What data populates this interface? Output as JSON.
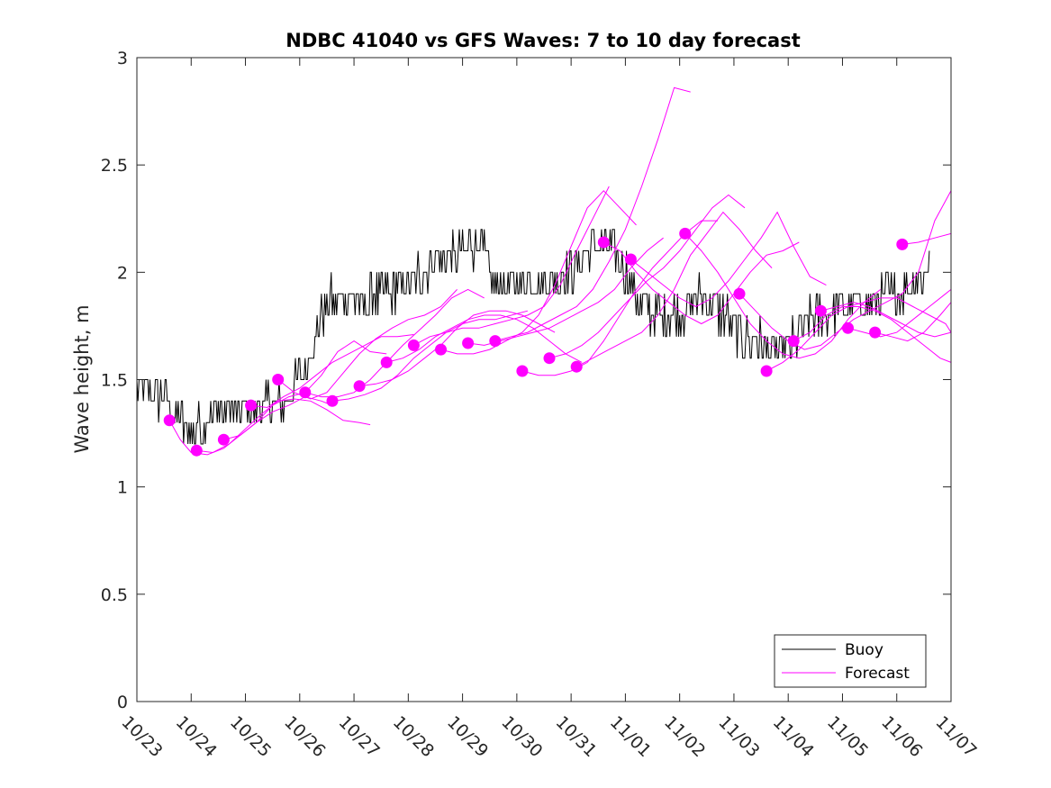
{
  "chart_data": {
    "type": "line",
    "title": "NDBC 41040 vs GFS Waves: 7 to 10 day forecast",
    "xlabel": "",
    "ylabel": "Wave height, m",
    "x_tick_labels": [
      "10/23",
      "10/24",
      "10/25",
      "10/26",
      "10/27",
      "10/28",
      "10/29",
      "10/30",
      "10/31",
      "11/01",
      "11/02",
      "11/03",
      "11/04",
      "11/05",
      "11/06",
      "11/07"
    ],
    "y_tick_labels": [
      "0",
      "0.5",
      "1",
      "1.5",
      "2",
      "2.5",
      "3"
    ],
    "xlim": [
      0,
      15
    ],
    "ylim": [
      0,
      3
    ],
    "y_ticks": [
      0,
      0.5,
      1,
      1.5,
      2,
      2.5,
      3
    ],
    "x_units": "days since 10/23",
    "legend": {
      "location": "bottom-right",
      "entries": [
        "Buoy",
        "Forecast"
      ]
    },
    "colors": {
      "buoy": "#000000",
      "forecast": "#ff00ff",
      "axes": "#262626"
    },
    "buoy_series": {
      "name": "Buoy",
      "anchors": [
        [
          0,
          1.45
        ],
        [
          0.5,
          1.4
        ],
        [
          0.8,
          1.3
        ],
        [
          1.0,
          1.25
        ],
        [
          1.5,
          1.35
        ],
        [
          2.0,
          1.35
        ],
        [
          2.5,
          1.4
        ],
        [
          2.8,
          1.4
        ],
        [
          3.0,
          1.5
        ],
        [
          3.3,
          1.7
        ],
        [
          3.5,
          1.85
        ],
        [
          3.8,
          1.9
        ],
        [
          4.2,
          1.85
        ],
        [
          4.5,
          1.9
        ],
        [
          5.0,
          1.95
        ],
        [
          5.5,
          2.05
        ],
        [
          6.0,
          2.1
        ],
        [
          6.3,
          2.15
        ],
        [
          6.6,
          1.95
        ],
        [
          7.0,
          1.95
        ],
        [
          7.5,
          1.95
        ],
        [
          8.0,
          2.0
        ],
        [
          8.3,
          2.1
        ],
        [
          8.6,
          2.15
        ],
        [
          9.0,
          2.0
        ],
        [
          9.3,
          1.85
        ],
        [
          9.6,
          1.8
        ],
        [
          10.0,
          1.8
        ],
        [
          10.4,
          1.9
        ],
        [
          10.8,
          1.8
        ],
        [
          11.2,
          1.7
        ],
        [
          11.6,
          1.65
        ],
        [
          12.0,
          1.65
        ],
        [
          12.3,
          1.75
        ],
        [
          12.6,
          1.8
        ],
        [
          13.0,
          1.85
        ],
        [
          13.5,
          1.85
        ],
        [
          14.0,
          1.9
        ],
        [
          14.3,
          1.95
        ],
        [
          14.5,
          2.0
        ],
        [
          14.6,
          2.1
        ]
      ],
      "noise_amplitude": 0.1,
      "step": 0.02,
      "quantum": 0.1
    },
    "forecast_runs": [
      {
        "x": [
          0.6,
          0.8,
          1.0,
          1.3,
          1.6,
          1.9,
          2.2,
          2.5,
          2.8,
          3.1,
          3.4,
          3.6
        ],
        "y": [
          1.31,
          1.22,
          1.16,
          1.15,
          1.18,
          1.24,
          1.3,
          1.35,
          1.38,
          1.42,
          1.4,
          1.38
        ]
      },
      {
        "x": [
          1.1,
          1.4,
          1.7,
          2.0,
          2.3,
          2.6,
          2.9,
          3.2,
          3.5,
          3.8,
          4.1,
          4.3
        ],
        "y": [
          1.17,
          1.16,
          1.2,
          1.27,
          1.34,
          1.4,
          1.41,
          1.4,
          1.36,
          1.31,
          1.3,
          1.29
        ]
      },
      {
        "x": [
          1.6,
          1.9,
          2.2,
          2.5,
          2.8,
          3.1,
          3.4,
          3.7,
          4.0,
          4.3,
          4.6
        ],
        "y": [
          1.22,
          1.24,
          1.3,
          1.38,
          1.42,
          1.44,
          1.52,
          1.63,
          1.68,
          1.63,
          1.62
        ]
      },
      {
        "x": [
          2.1,
          2.4,
          2.7,
          3.0,
          3.3,
          3.6,
          3.9,
          4.2,
          4.5,
          4.8,
          5.1
        ],
        "y": [
          1.38,
          1.37,
          1.42,
          1.46,
          1.52,
          1.58,
          1.62,
          1.66,
          1.7,
          1.7,
          1.71
        ]
      },
      {
        "x": [
          2.6,
          2.9,
          3.2,
          3.5,
          3.8,
          4.1,
          4.4,
          4.7,
          5.0,
          5.3,
          5.6,
          5.9
        ],
        "y": [
          1.5,
          1.44,
          1.41,
          1.44,
          1.53,
          1.62,
          1.69,
          1.74,
          1.78,
          1.8,
          1.84,
          1.92
        ]
      },
      {
        "x": [
          3.1,
          3.4,
          3.7,
          4.0,
          4.3,
          4.6,
          4.9,
          5.2,
          5.5,
          5.8,
          6.1,
          6.4
        ],
        "y": [
          1.44,
          1.42,
          1.42,
          1.44,
          1.5,
          1.58,
          1.66,
          1.73,
          1.8,
          1.88,
          1.92,
          1.88
        ]
      },
      {
        "x": [
          3.6,
          3.9,
          4.2,
          4.5,
          4.8,
          5.1,
          5.4,
          5.7,
          6.0,
          6.3,
          6.6,
          6.9,
          7.2
        ],
        "y": [
          1.4,
          1.41,
          1.43,
          1.46,
          1.52,
          1.6,
          1.66,
          1.72,
          1.76,
          1.78,
          1.78,
          1.8,
          1.82
        ]
      },
      {
        "x": [
          4.1,
          4.4,
          4.7,
          5.0,
          5.3,
          5.6,
          5.9,
          6.2,
          6.5,
          6.8,
          7.1,
          7.4,
          7.7
        ],
        "y": [
          1.47,
          1.48,
          1.5,
          1.54,
          1.6,
          1.66,
          1.74,
          1.8,
          1.82,
          1.82,
          1.8,
          1.76,
          1.72
        ]
      },
      {
        "x": [
          4.6,
          4.9,
          5.2,
          5.5,
          5.8,
          6.1,
          6.4,
          6.7,
          7.0,
          7.3,
          7.6,
          7.9,
          8.2
        ],
        "y": [
          1.58,
          1.6,
          1.64,
          1.7,
          1.74,
          1.78,
          1.8,
          1.8,
          1.78,
          1.74,
          1.68,
          1.62,
          1.58
        ]
      },
      {
        "x": [
          5.1,
          5.4,
          5.7,
          6.0,
          6.3,
          6.6,
          6.9,
          7.2,
          7.5,
          7.8,
          8.1,
          8.4,
          8.7
        ],
        "y": [
          1.66,
          1.7,
          1.72,
          1.74,
          1.74,
          1.76,
          1.78,
          1.8,
          1.84,
          1.94,
          2.1,
          2.25,
          2.4
        ]
      },
      {
        "x": [
          5.6,
          5.9,
          6.2,
          6.5,
          6.8,
          7.1,
          7.4,
          7.7,
          8.0,
          8.3,
          8.6,
          8.9,
          9.2
        ],
        "y": [
          1.64,
          1.62,
          1.62,
          1.64,
          1.68,
          1.72,
          1.8,
          1.94,
          2.12,
          2.3,
          2.38,
          2.3,
          2.22
        ]
      },
      {
        "x": [
          6.1,
          6.4,
          6.7,
          7.0,
          7.3,
          7.6,
          7.9,
          8.2,
          8.5,
          8.8,
          9.1,
          9.4,
          9.7
        ],
        "y": [
          1.67,
          1.66,
          1.68,
          1.7,
          1.72,
          1.74,
          1.78,
          1.82,
          1.86,
          1.92,
          2.02,
          2.1,
          2.16
        ]
      },
      {
        "x": [
          6.6,
          6.9,
          7.2,
          7.5,
          7.8,
          8.1,
          8.4,
          8.7,
          9.0,
          9.3,
          9.6,
          9.9,
          10.2
        ],
        "y": [
          1.68,
          1.7,
          1.72,
          1.76,
          1.8,
          1.84,
          1.92,
          2.05,
          2.2,
          2.4,
          2.62,
          2.86,
          2.84
        ]
      },
      {
        "x": [
          7.1,
          7.4,
          7.7,
          8.0,
          8.3,
          8.6,
          8.9,
          9.2,
          9.5,
          9.8,
          10.1,
          10.4,
          10.7
        ],
        "y": [
          1.54,
          1.52,
          1.52,
          1.54,
          1.58,
          1.68,
          1.8,
          1.92,
          2.02,
          2.1,
          2.18,
          2.24,
          2.24
        ]
      },
      {
        "x": [
          7.6,
          7.9,
          8.2,
          8.5,
          8.8,
          9.1,
          9.4,
          9.7,
          10.0,
          10.3,
          10.6,
          10.9,
          11.2
        ],
        "y": [
          1.6,
          1.62,
          1.66,
          1.72,
          1.8,
          1.88,
          1.96,
          2.02,
          2.1,
          2.2,
          2.3,
          2.36,
          2.3
        ]
      },
      {
        "x": [
          8.1,
          8.4,
          8.7,
          9.0,
          9.3,
          9.6,
          9.9,
          10.2,
          10.5,
          10.8,
          11.1,
          11.4,
          11.7
        ],
        "y": [
          1.56,
          1.6,
          1.64,
          1.68,
          1.72,
          1.8,
          1.92,
          2.08,
          2.18,
          2.28,
          2.2,
          2.1,
          2.02
        ]
      },
      {
        "x": [
          8.6,
          8.9,
          9.2,
          9.5,
          9.8,
          10.1,
          10.4,
          10.7,
          11.0,
          11.3,
          11.6,
          11.9,
          12.2
        ],
        "y": [
          2.14,
          2.1,
          2.0,
          1.92,
          1.86,
          1.8,
          1.76,
          1.8,
          1.9,
          2.0,
          2.08,
          2.1,
          2.14
        ]
      },
      {
        "x": [
          9.1,
          9.4,
          9.7,
          10.0,
          10.3,
          10.6,
          10.9,
          11.2,
          11.5,
          11.8,
          12.1,
          12.4,
          12.7
        ],
        "y": [
          2.06,
          2.0,
          1.94,
          1.88,
          1.84,
          1.88,
          1.96,
          2.06,
          2.16,
          2.28,
          2.12,
          1.98,
          1.94
        ]
      },
      {
        "x": [
          10.1,
          10.4,
          10.7,
          11.0,
          11.3,
          11.6,
          11.9,
          12.2,
          12.5,
          12.8,
          13.1,
          13.4,
          13.7
        ],
        "y": [
          2.18,
          2.1,
          2.0,
          1.88,
          1.76,
          1.68,
          1.62,
          1.6,
          1.62,
          1.68,
          1.78,
          1.86,
          1.92
        ]
      },
      {
        "x": [
          11.1,
          11.4,
          11.7,
          12.0,
          12.3,
          12.6,
          12.9,
          13.2,
          13.5,
          13.8,
          14.1,
          14.4,
          14.7,
          15.0
        ],
        "y": [
          1.9,
          1.82,
          1.74,
          1.68,
          1.64,
          1.66,
          1.72,
          1.78,
          1.82,
          1.86,
          1.9,
          2.0,
          2.24,
          2.38
        ]
      },
      {
        "x": [
          11.6,
          11.9,
          12.2,
          12.5,
          12.8,
          13.1,
          13.4,
          13.7,
          14.0,
          14.3,
          14.6,
          14.9,
          15.0
        ],
        "y": [
          1.54,
          1.58,
          1.64,
          1.72,
          1.8,
          1.84,
          1.86,
          1.88,
          1.88,
          1.84,
          1.8,
          1.76,
          1.72
        ]
      },
      {
        "x": [
          12.1,
          12.4,
          12.7,
          13.0,
          13.3,
          13.6,
          13.9,
          14.2,
          14.5,
          14.8,
          15.0
        ],
        "y": [
          1.68,
          1.72,
          1.8,
          1.84,
          1.84,
          1.82,
          1.78,
          1.72,
          1.66,
          1.6,
          1.58
        ]
      },
      {
        "x": [
          12.6,
          12.9,
          13.2,
          13.5,
          13.8,
          14.1,
          14.4,
          14.7,
          15.0
        ],
        "y": [
          1.82,
          1.84,
          1.86,
          1.84,
          1.8,
          1.76,
          1.72,
          1.7,
          1.72
        ]
      },
      {
        "x": [
          13.1,
          13.4,
          13.7,
          14.0,
          14.3,
          14.6,
          14.9,
          15.0
        ],
        "y": [
          1.74,
          1.72,
          1.7,
          1.72,
          1.78,
          1.84,
          1.9,
          1.92
        ]
      },
      {
        "x": [
          13.6,
          13.9,
          14.2,
          14.5,
          14.8,
          15.0
        ],
        "y": [
          1.72,
          1.7,
          1.68,
          1.72,
          1.8,
          1.86
        ]
      },
      {
        "x": [
          14.1,
          14.4,
          14.7,
          15.0
        ],
        "y": [
          2.13,
          2.14,
          2.16,
          2.18
        ]
      }
    ],
    "forecast_markers": {
      "x": [
        0.6,
        1.1,
        1.6,
        2.1,
        2.6,
        3.1,
        3.6,
        4.1,
        4.6,
        5.1,
        5.6,
        6.1,
        6.6,
        7.1,
        7.6,
        8.1,
        8.6,
        9.1,
        10.1,
        11.1,
        11.6,
        12.1,
        12.6,
        13.1,
        13.6,
        14.1
      ],
      "y": [
        1.31,
        1.17,
        1.22,
        1.38,
        1.5,
        1.44,
        1.4,
        1.47,
        1.58,
        1.66,
        1.64,
        1.67,
        1.68,
        1.54,
        1.6,
        1.56,
        2.14,
        2.06,
        2.18,
        1.9,
        1.54,
        1.68,
        1.82,
        1.74,
        1.72,
        2.13
      ]
    }
  }
}
